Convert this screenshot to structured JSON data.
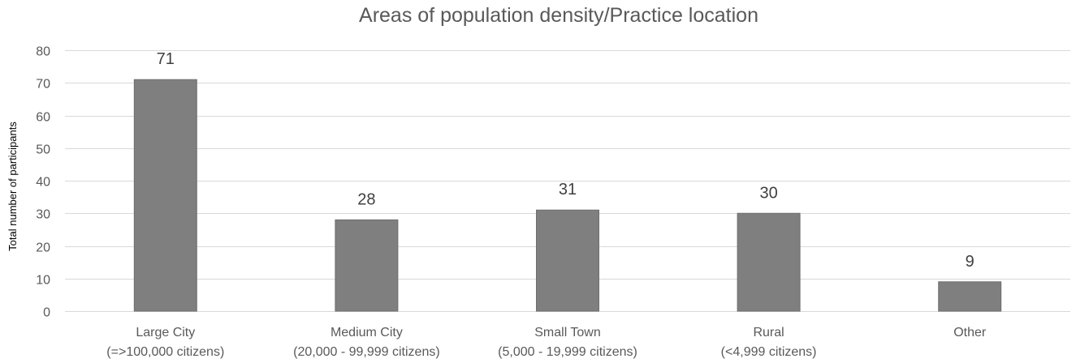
{
  "chart_data": {
    "type": "bar",
    "title": "Areas of population density/Practice location",
    "xlabel": "",
    "ylabel": "Total number of participants",
    "ylim": [
      0,
      80
    ],
    "yticks": [
      0,
      10,
      20,
      30,
      40,
      50,
      60,
      70,
      80
    ],
    "grid": true,
    "legend": "none",
    "bar_color": "#7f7f7f",
    "categories": [
      [
        "Large City",
        "(=>100,000 citizens)"
      ],
      [
        "Medium City",
        "(20,000 - 99,999 citizens)"
      ],
      [
        "Small Town",
        "(5,000 - 19,999 citizens)"
      ],
      [
        "Rural",
        "(<4,999 citizens)"
      ],
      [
        "Other"
      ]
    ],
    "values": [
      71,
      28,
      31,
      30,
      9
    ]
  }
}
